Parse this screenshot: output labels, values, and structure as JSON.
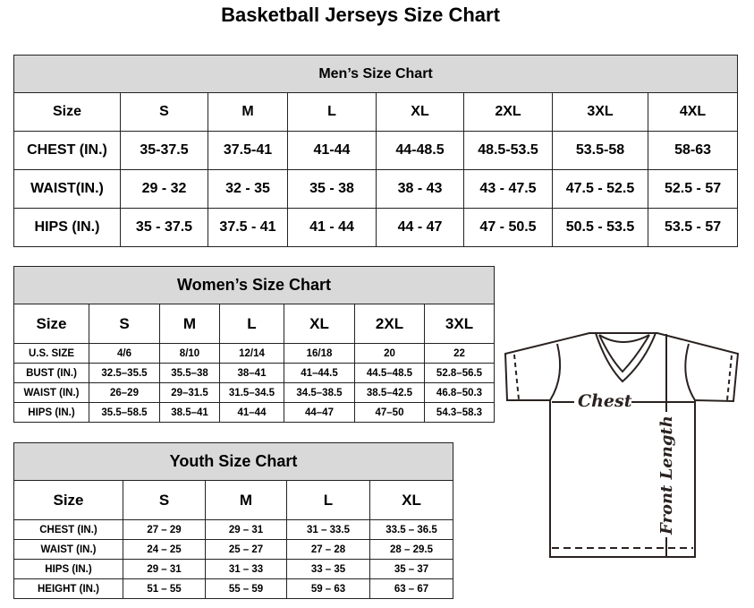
{
  "title": "Basketball Jerseys Size Chart",
  "men": {
    "title": "Men’s Size Chart",
    "header": [
      "Size",
      "S",
      "M",
      "L",
      "XL",
      "2XL",
      "3XL",
      "4XL"
    ],
    "rows": [
      [
        "CHEST (IN.)",
        "35-37.5",
        "37.5-41",
        "41-44",
        "44-48.5",
        "48.5-53.5",
        "53.5-58",
        "58-63"
      ],
      [
        "WAIST(IN.)",
        "29 - 32",
        "32 - 35",
        "35 - 38",
        "38 - 43",
        "43 - 47.5",
        "47.5 - 52.5",
        "52.5 - 57"
      ],
      [
        "HIPS (IN.)",
        "35 - 37.5",
        "37.5 - 41",
        "41 - 44",
        "44 - 47",
        "47 - 50.5",
        "50.5 - 53.5",
        "53.5 - 57"
      ]
    ]
  },
  "women": {
    "title": "Women’s Size Chart",
    "header": [
      "Size",
      "S",
      "M",
      "L",
      "XL",
      "2XL",
      "3XL"
    ],
    "rows": [
      [
        "U.S. SIZE",
        "4/6",
        "8/10",
        "12/14",
        "16/18",
        "20",
        "22"
      ],
      [
        "BUST (IN.)",
        "32.5–35.5",
        "35.5–38",
        "38–41",
        "41–44.5",
        "44.5–48.5",
        "52.8–56.5"
      ],
      [
        "WAIST (IN.)",
        "26–29",
        "29–31.5",
        "31.5–34.5",
        "34.5–38.5",
        "38.5–42.5",
        "46.8–50.3"
      ],
      [
        "HIPS (IN.)",
        "35.5–58.5",
        "38.5–41",
        "41–44",
        "44–47",
        "47–50",
        "54.3–58.3"
      ]
    ]
  },
  "youth": {
    "title": "Youth Size Chart",
    "header": [
      "Size",
      "S",
      "M",
      "L",
      "XL"
    ],
    "rows": [
      [
        "CHEST (IN.)",
        "27 – 29",
        "29 – 31",
        "31 – 33.5",
        "33.5 – 36.5"
      ],
      [
        "WAIST (IN.)",
        "24 – 25",
        "25 – 27",
        "27 – 28",
        "28 – 29.5"
      ],
      [
        "HIPS (IN.)",
        "29 – 31",
        "31 – 33",
        "33 – 35",
        "35 – 37"
      ],
      [
        "HEIGHT (IN.)",
        "51 – 55",
        "55 – 59",
        "59 – 63",
        "63 – 67"
      ]
    ]
  },
  "diagram": {
    "chest_label": "Chest",
    "length_label": "Front Length"
  }
}
